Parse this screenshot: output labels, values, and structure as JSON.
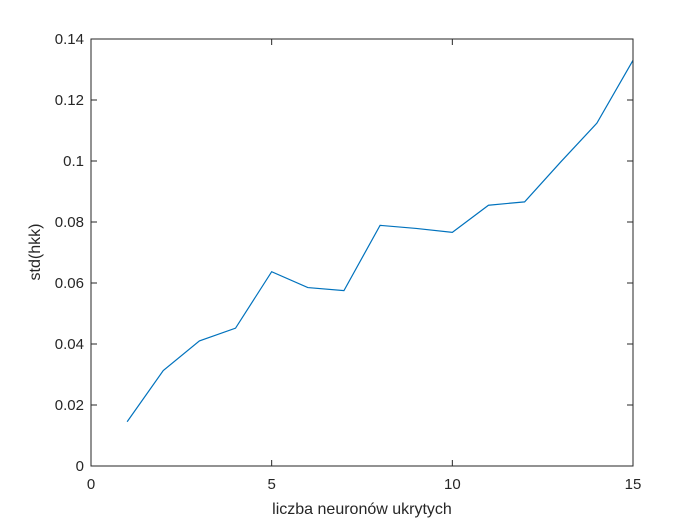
{
  "chart_data": {
    "type": "line",
    "xlabel": "liczba neuronów ukrytych",
    "ylabel": "std(hkk)",
    "xlim": [
      0,
      15
    ],
    "ylim": [
      0,
      0.14
    ],
    "xticks": [
      0,
      5,
      10,
      15
    ],
    "xtick_labels": [
      "0",
      "5",
      "10",
      "15"
    ],
    "yticks": [
      0,
      0.02,
      0.04,
      0.06,
      0.08,
      0.1,
      0.12,
      0.14
    ],
    "ytick_labels": [
      "0",
      "0.02",
      "0.04",
      "0.06",
      "0.08",
      "0.1",
      "0.12",
      "0.14"
    ],
    "grid": false,
    "series": [
      {
        "color": "#0072bd",
        "x": [
          1,
          2,
          3,
          4,
          5,
          6,
          7,
          8,
          9,
          10,
          11,
          12,
          13,
          14,
          15
        ],
        "y": [
          0.0145,
          0.0313,
          0.041,
          0.0452,
          0.0637,
          0.0585,
          0.0575,
          0.0789,
          0.0779,
          0.0766,
          0.0855,
          0.0866,
          0.0997,
          0.1124,
          0.133
        ]
      }
    ]
  }
}
